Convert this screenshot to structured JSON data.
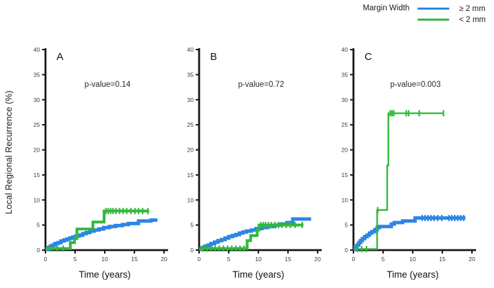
{
  "chart_data": {
    "type": "line",
    "subtype": "kaplan-meier-step",
    "xlabel": "Time (years)",
    "ylabel": "Local Regional Recurrence (%)",
    "xlim": [
      0,
      20
    ],
    "ylim": [
      0,
      40
    ],
    "xticks": [
      0,
      5,
      10,
      15,
      20
    ],
    "yticks": [
      0,
      5,
      10,
      15,
      20,
      25,
      30,
      35,
      40
    ],
    "grid": false,
    "legend": {
      "title": "Margin Width",
      "position": "top-right",
      "entries": [
        {
          "label": "≥ 2 mm",
          "color": "#2B86E6"
        },
        {
          "label": "< 2 mm",
          "color": "#33B83C"
        }
      ]
    },
    "colors": {
      "ge2mm_blue": "#2B86E6",
      "lt2mm_green": "#33B83C",
      "axis": "#161616"
    },
    "panels": [
      {
        "letter": "A",
        "p_value": "p-value=0.14",
        "series": [
          {
            "name": "≥ 2 mm",
            "color": "#2B86E6",
            "width": 5,
            "steps": [
              [
                0,
                0.2
              ],
              [
                0.4,
                0.5
              ],
              [
                0.8,
                0.8
              ],
              [
                1.2,
                1.0
              ],
              [
                1.6,
                1.3
              ],
              [
                2.1,
                1.5
              ],
              [
                2.6,
                1.8
              ],
              [
                3.1,
                2.0
              ],
              [
                3.6,
                2.2
              ],
              [
                4.1,
                2.4
              ],
              [
                4.6,
                2.6
              ],
              [
                5.1,
                2.8
              ],
              [
                5.7,
                3.0
              ],
              [
                6.3,
                3.3
              ],
              [
                6.9,
                3.5
              ],
              [
                7.5,
                3.8
              ],
              [
                8.2,
                4.0
              ],
              [
                9.0,
                4.2
              ],
              [
                9.8,
                4.5
              ],
              [
                10.8,
                4.7
              ],
              [
                11.8,
                4.9
              ],
              [
                13.0,
                5.1
              ],
              [
                14.0,
                5.3
              ],
              [
                15.7,
                5.8
              ],
              [
                17.8,
                6.0
              ]
            ],
            "end": 18.9,
            "censor_times": []
          },
          {
            "name": "< 2 mm",
            "color": "#33B83C",
            "width": 4,
            "steps": [
              [
                0,
                0.3
              ],
              [
                4.2,
                1.5
              ],
              [
                4.9,
                2.3
              ],
              [
                5.3,
                4.2
              ],
              [
                8.0,
                5.6
              ],
              [
                9.9,
                7.8
              ]
            ],
            "end": 17.5,
            "censor_times": [
              1.0,
              2.0,
              3.0,
              10.2,
              10.6,
              11.0,
              11.4,
              11.9,
              12.5,
              13.1,
              13.7,
              14.4,
              15.1,
              15.7,
              16.4,
              17.3
            ]
          }
        ]
      },
      {
        "letter": "B",
        "p_value": "p-value=0.72",
        "series": [
          {
            "name": "≥ 2 mm",
            "color": "#2B86E6",
            "width": 5,
            "steps": [
              [
                0,
                0.2
              ],
              [
                0.5,
                0.5
              ],
              [
                1.0,
                0.8
              ],
              [
                1.5,
                1.0
              ],
              [
                2.0,
                1.3
              ],
              [
                2.6,
                1.6
              ],
              [
                3.2,
                1.9
              ],
              [
                3.8,
                2.1
              ],
              [
                4.4,
                2.4
              ],
              [
                5.0,
                2.7
              ],
              [
                5.6,
                2.9
              ],
              [
                6.2,
                3.1
              ],
              [
                6.8,
                3.4
              ],
              [
                7.4,
                3.6
              ],
              [
                8.0,
                3.8
              ],
              [
                8.8,
                4.0
              ],
              [
                9.6,
                4.3
              ],
              [
                10.6,
                4.5
              ],
              [
                11.6,
                4.7
              ],
              [
                12.8,
                5.0
              ],
              [
                13.8,
                5.2
              ],
              [
                14.8,
                5.5
              ],
              [
                15.8,
                6.2
              ]
            ],
            "end": 18.9,
            "censor_times": []
          },
          {
            "name": "< 2 mm",
            "color": "#33B83C",
            "width": 4,
            "steps": [
              [
                0,
                0.3
              ],
              [
                8.1,
                1.9
              ],
              [
                8.7,
                2.9
              ],
              [
                9.8,
                4.0
              ],
              [
                10.1,
                5.0
              ]
            ],
            "end": 17.6,
            "censor_times": [
              0.6,
              1.3,
              2.0,
              2.7,
              3.4,
              4.1,
              4.8,
              5.5,
              6.2,
              6.9,
              7.6,
              10.4,
              10.8,
              11.2,
              11.7,
              12.2,
              12.8,
              13.4,
              14.0,
              14.7,
              15.4,
              16.2,
              17.4
            ]
          }
        ]
      },
      {
        "letter": "C",
        "p_value": "p-value=0.003",
        "series": [
          {
            "name": "≥ 2 mm",
            "color": "#2B86E6",
            "width": 5,
            "steps": [
              [
                0,
                0.2
              ],
              [
                0.3,
                0.6
              ],
              [
                0.6,
                1.0
              ],
              [
                0.9,
                1.5
              ],
              [
                1.2,
                1.9
              ],
              [
                1.5,
                2.3
              ],
              [
                1.9,
                2.7
              ],
              [
                2.3,
                3.0
              ],
              [
                2.7,
                3.4
              ],
              [
                3.1,
                3.7
              ],
              [
                3.6,
                4.1
              ],
              [
                4.0,
                4.5
              ],
              [
                4.4,
                4.7
              ],
              [
                6.4,
                5.2
              ],
              [
                6.9,
                5.5
              ],
              [
                8.3,
                5.8
              ],
              [
                10.4,
                6.4
              ]
            ],
            "end": 18.9,
            "censor_times": [
              11.6,
              12.1,
              12.6,
              13.1,
              13.6,
              14.2,
              14.9,
              16.1,
              16.6,
              17.1,
              17.6,
              18.1,
              18.6
            ]
          },
          {
            "name": "< 2 mm",
            "color": "#33B83C",
            "width": 2.4,
            "steps": [
              [
                0,
                0.2
              ],
              [
                4.0,
                8.0
              ],
              [
                5.7,
                16.9
              ],
              [
                5.9,
                27.3
              ]
            ],
            "end": 15.3,
            "censor_times": [
              0.7,
              1.4,
              2.2,
              4.1,
              6.2,
              6.5,
              6.8,
              8.9,
              9.3,
              11.1,
              15.2
            ]
          }
        ]
      }
    ]
  }
}
